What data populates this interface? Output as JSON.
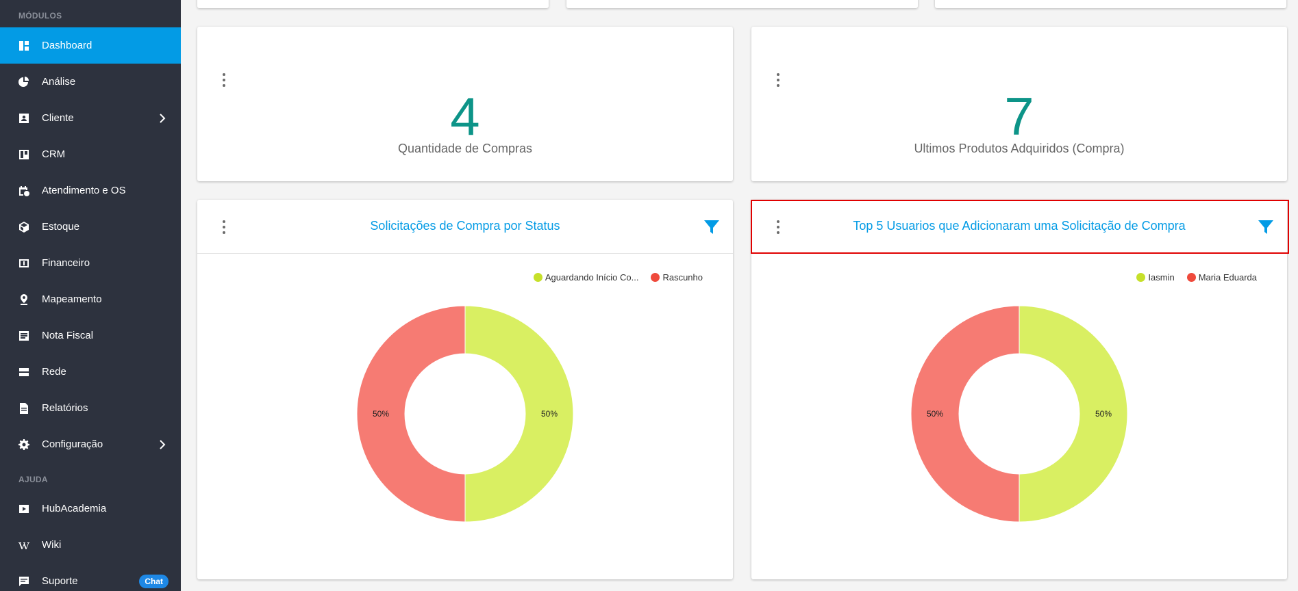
{
  "sidebar": {
    "section_modules": "MÓDULOS",
    "section_help": "AJUDA",
    "items": [
      {
        "label": "Dashboard",
        "icon": "dashboard-icon"
      },
      {
        "label": "Análise",
        "icon": "pie-chart-icon"
      },
      {
        "label": "Cliente",
        "icon": "contact-card-icon"
      },
      {
        "label": "CRM",
        "icon": "kanban-icon"
      },
      {
        "label": "Atendimento e OS",
        "icon": "calendar-clock-icon"
      },
      {
        "label": "Estoque",
        "icon": "box-icon"
      },
      {
        "label": "Financeiro",
        "icon": "dollar-bill-icon"
      },
      {
        "label": "Mapeamento",
        "icon": "map-pin-icon"
      },
      {
        "label": "Nota Fiscal",
        "icon": "document-list-icon"
      },
      {
        "label": "Rede",
        "icon": "server-icon"
      },
      {
        "label": "Relatórios",
        "icon": "report-icon"
      },
      {
        "label": "Configuração",
        "icon": "gear-icon"
      }
    ],
    "help_items": [
      {
        "label": "HubAcademia",
        "icon": "video-play-icon"
      },
      {
        "label": "Wiki",
        "icon": "wikipedia-icon"
      },
      {
        "label": "Suporte",
        "icon": "chat-icon",
        "badge": "Chat"
      }
    ]
  },
  "stats": [
    {
      "value": "4",
      "label": "Quantidade de Compras"
    },
    {
      "value": "7",
      "label": "Ultimos Produtos Adquiridos (Compra)"
    }
  ],
  "colors": {
    "accent": "#039be5",
    "stat": "#0d9488",
    "green_slice": "#d9ef62",
    "red_slice": "#f67b73",
    "green_dot": "#c6e02a",
    "red_dot": "#ef4a3c"
  },
  "chart_data": [
    {
      "type": "pie",
      "title": "Solicitações de Compra por Status",
      "legend_position": "top-right",
      "labels": [
        "Aguardando Início Co...",
        "Rascunho"
      ],
      "values": [
        50,
        50
      ],
      "data_labels": [
        "50%",
        "50%"
      ]
    },
    {
      "type": "pie",
      "title": "Top 5 Usuarios que Adicionaram uma Solicitação de Compra",
      "legend_position": "top-right",
      "labels": [
        "Iasmin",
        "Maria Eduarda"
      ],
      "values": [
        50,
        50
      ],
      "data_labels": [
        "50%",
        "50%"
      ]
    }
  ]
}
